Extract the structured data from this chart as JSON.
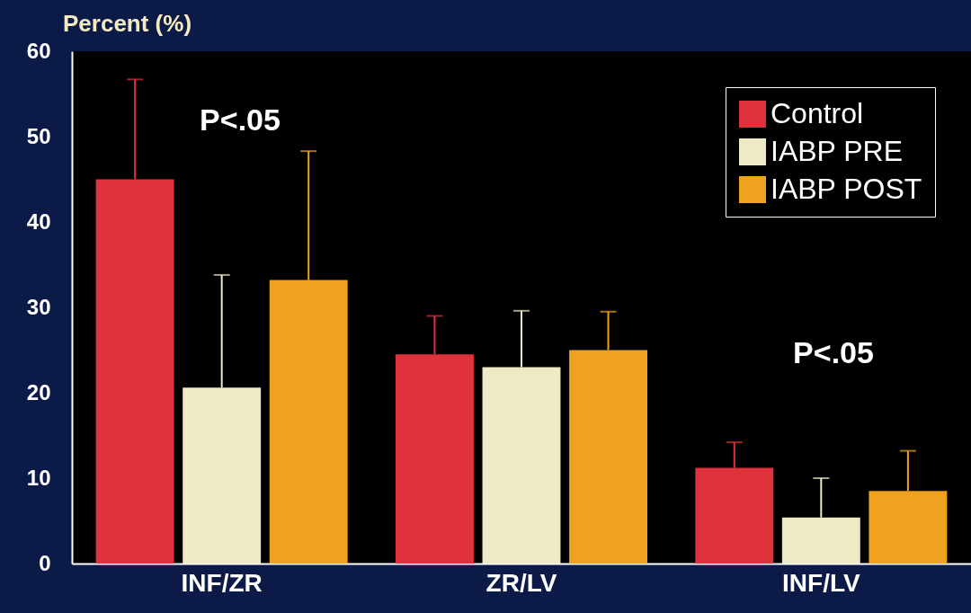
{
  "chart_data": {
    "type": "bar",
    "ylabel": "Percent (%)",
    "categories": [
      "INF/ZR",
      "ZR/LV",
      "INF/LV"
    ],
    "series": [
      {
        "name": "Control",
        "color": "#e0323c",
        "values": [
          45,
          24.5,
          11.2
        ],
        "errors": [
          [
            45,
            56.7
          ],
          [
            24.5,
            29
          ],
          [
            11.2,
            14.2
          ]
        ]
      },
      {
        "name": "IABP PRE",
        "color": "#efeac6",
        "values": [
          20.6,
          23,
          5.4
        ],
        "errors": [
          [
            20.6,
            33.8
          ],
          [
            23,
            29.6
          ],
          [
            5.4,
            10
          ]
        ]
      },
      {
        "name": "IABP POST",
        "color": "#eea21e",
        "values": [
          33.2,
          25,
          8.5
        ],
        "errors": [
          [
            33.2,
            48.3
          ],
          [
            25,
            29.5
          ],
          [
            8.5,
            13.2
          ]
        ]
      }
    ],
    "ylim": [
      0,
      60
    ],
    "yticks": [
      0,
      10,
      20,
      30,
      40,
      50,
      60
    ],
    "grid": false,
    "legend": "top right",
    "annotations": [
      "P<.05",
      "P<.05"
    ]
  }
}
